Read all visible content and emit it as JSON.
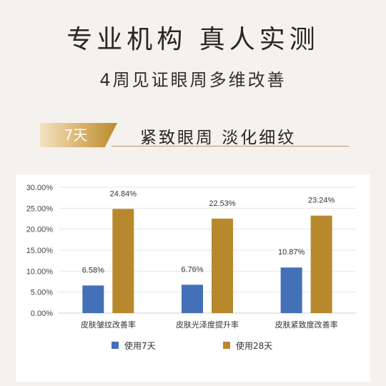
{
  "header": {
    "title": "专业机构  真人实测",
    "subtitle": "4周见证眼周多维改善"
  },
  "tagline": {
    "badge": "7天",
    "slogan": "紧致眼周  淡化细纹"
  },
  "colors": {
    "background": "#f4f1ee",
    "series_7d": "#4470b8",
    "series_28d": "#b8892c",
    "gold_accent": "#d4aa5e"
  },
  "chart_data": {
    "type": "bar",
    "categories": [
      "皮肤皱纹改善率",
      "皮肤光泽度提升率",
      "皮肤紧致度改善率"
    ],
    "series": [
      {
        "name": "使用7天",
        "values": [
          6.58,
          6.76,
          10.87
        ],
        "labels": [
          "6.58%",
          "6.76%",
          "10.87%"
        ],
        "color": "#4470b8"
      },
      {
        "name": "使用28天",
        "values": [
          24.84,
          22.53,
          23.24
        ],
        "labels": [
          "24.84%",
          "22.53%",
          "23.24%"
        ],
        "color": "#b8892c"
      }
    ],
    "ylim": [
      0,
      30
    ],
    "yticks": [
      "0.00%",
      "5.00%",
      "10.00%",
      "15.00%",
      "20.00%",
      "25.00%",
      "30.00%"
    ],
    "grid": true,
    "legend": "bottom"
  }
}
